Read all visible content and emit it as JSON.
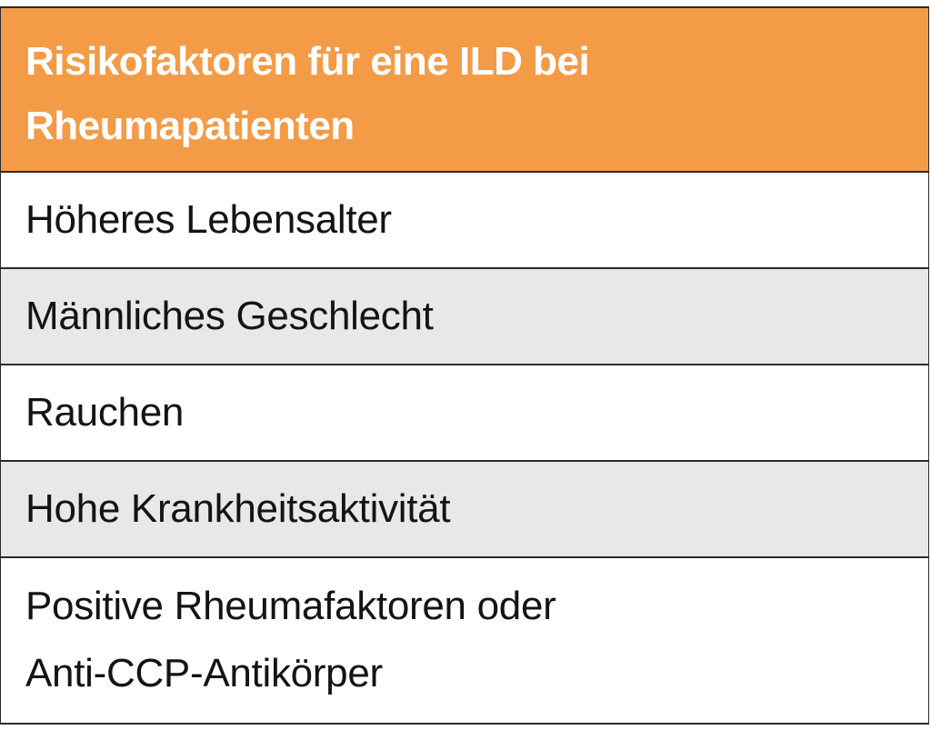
{
  "table": {
    "header_lines": [
      "Risikofaktoren für eine ILD bei",
      "Rheumapatienten"
    ],
    "header_color": "#f39b46",
    "rows": [
      {
        "lines": [
          "Höheres Lebensalter"
        ]
      },
      {
        "lines": [
          "Männliches Geschlecht"
        ]
      },
      {
        "lines": [
          "Rauchen"
        ]
      },
      {
        "lines": [
          "Hohe Krankheitsaktivität"
        ]
      },
      {
        "lines": [
          "Positive Rheumafaktoren oder",
          "Anti-CCP-Antikörper"
        ]
      }
    ]
  }
}
